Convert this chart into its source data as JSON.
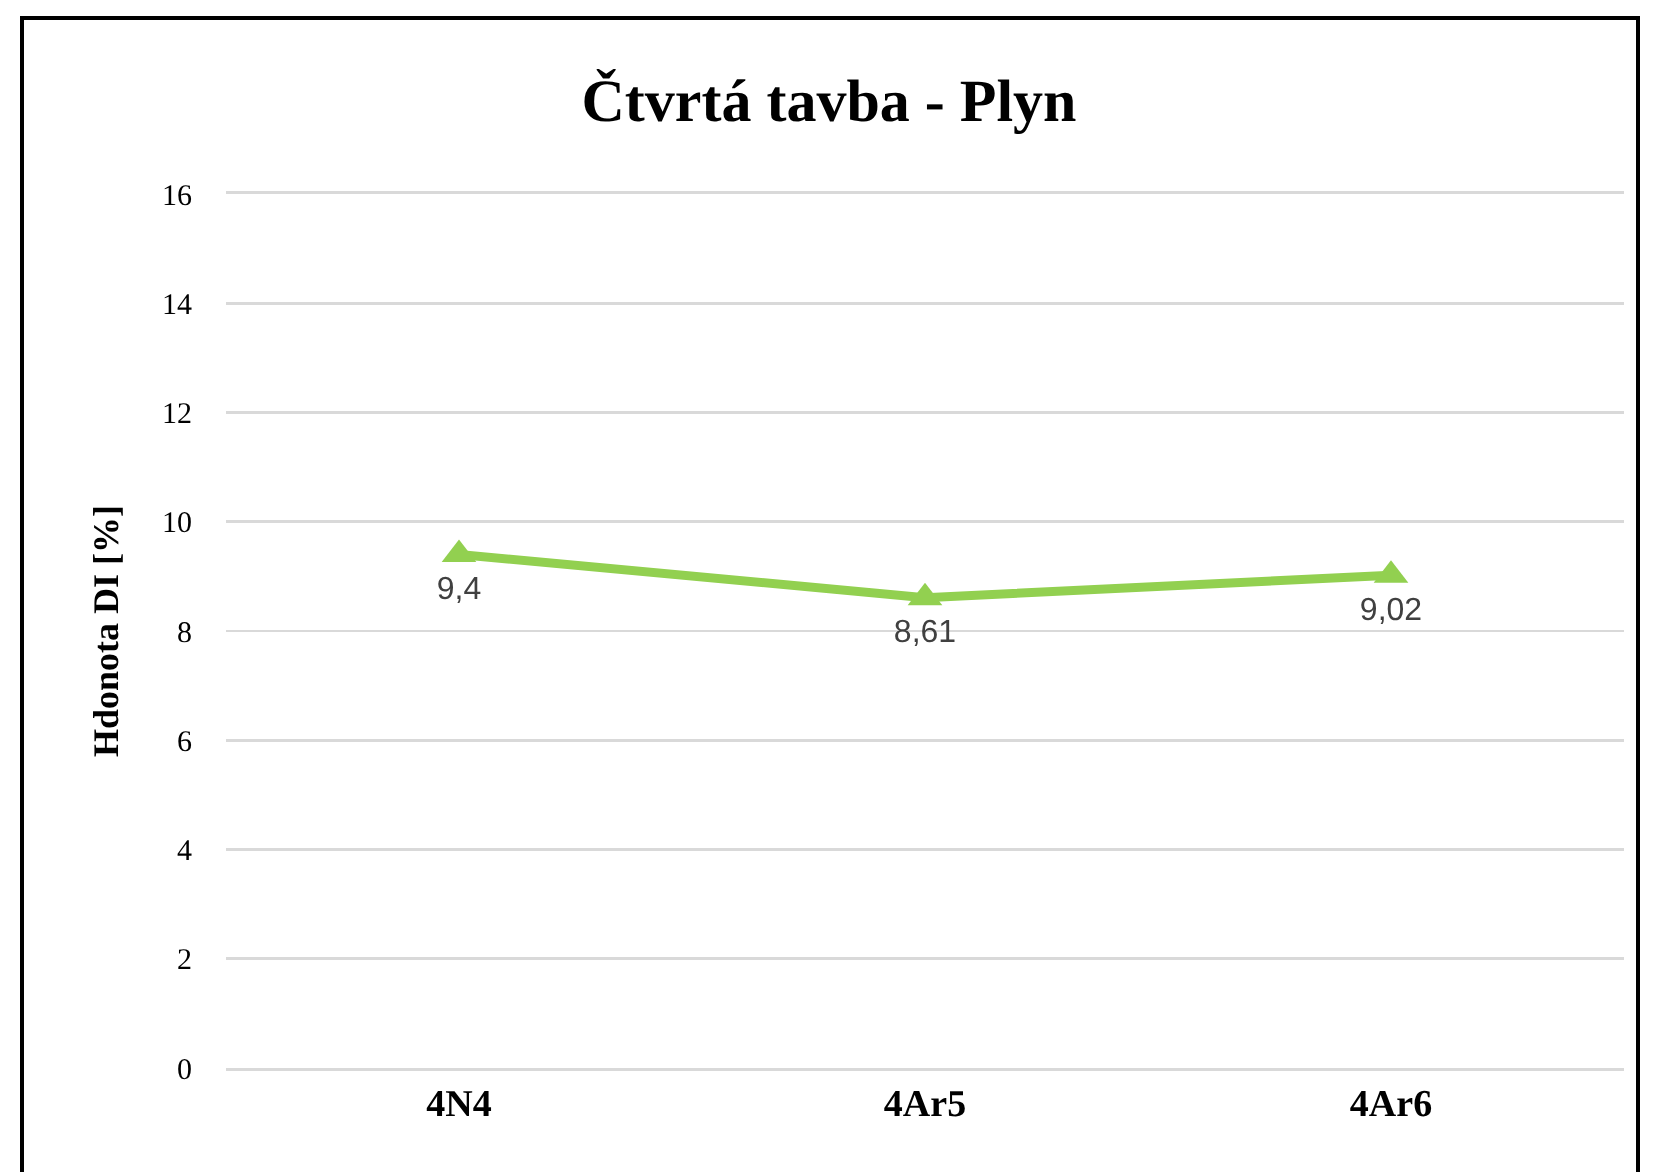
{
  "chart_data": {
    "type": "line",
    "title": "Čtvrtá tavba - Plyn",
    "ylabel": "Hdonota DI [%]",
    "categories": [
      "4N4",
      "4Ar5",
      "4Ar6"
    ],
    "series": [
      {
        "color": "#92d050",
        "values": [
          9.4,
          8.61,
          9.02
        ],
        "value_labels": [
          "9,4",
          "8,61",
          "9,02"
        ]
      }
    ],
    "ylim": [
      0,
      16
    ],
    "yticks": [
      0,
      2,
      4,
      6,
      8,
      10,
      12,
      14,
      16
    ],
    "grid": "y",
    "marker": "triangle"
  }
}
